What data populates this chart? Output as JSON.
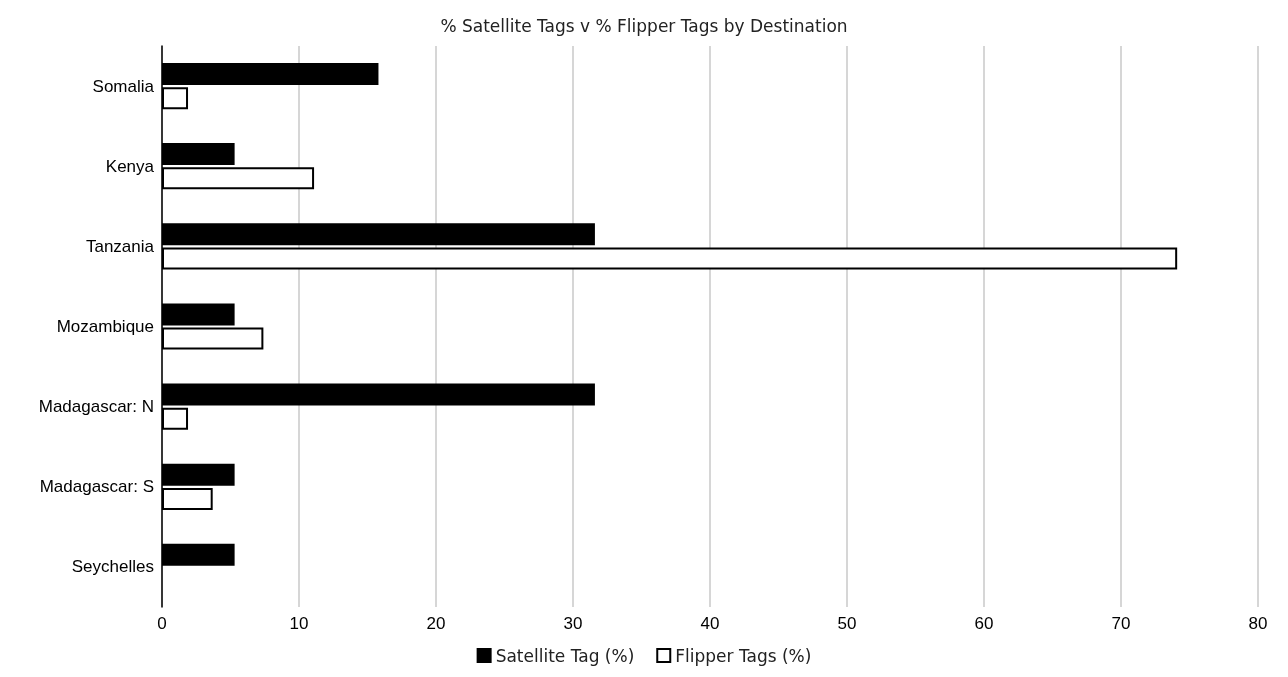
{
  "chart_data": {
    "type": "bar",
    "orientation": "horizontal",
    "title": "% Satellite Tags v % Flipper Tags by Destination",
    "categories": [
      "Somalia",
      "Kenya",
      "Tanzania",
      "Mozambique",
      "Madagascar: N",
      "Madagascar: S",
      "Seychelles"
    ],
    "series": [
      {
        "name": "Satellite Tag (%)",
        "color": "#000000",
        "values": [
          15.8,
          5.3,
          31.6,
          5.3,
          31.6,
          5.3,
          5.3
        ]
      },
      {
        "name": "Flipper Tags (%)",
        "color": "#ffffff",
        "values": [
          1.9,
          11.1,
          74.1,
          7.4,
          1.9,
          3.7,
          null
        ]
      }
    ],
    "xlim": [
      0,
      80
    ],
    "xticks": [
      0,
      10,
      20,
      30,
      40,
      50,
      60,
      70,
      80
    ],
    "grid": "x",
    "legend": "bottom"
  }
}
